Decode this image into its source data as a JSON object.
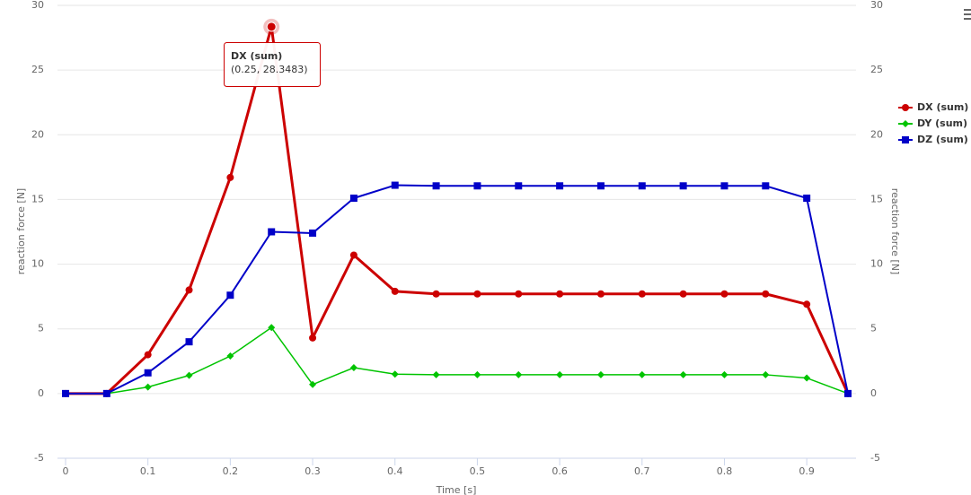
{
  "chart_data": {
    "type": "line",
    "x": [
      0,
      0.05,
      0.1,
      0.15,
      0.2,
      0.25,
      0.3,
      0.35,
      0.4,
      0.45,
      0.5,
      0.55,
      0.6,
      0.65,
      0.7,
      0.75,
      0.8,
      0.85,
      0.9,
      0.95
    ],
    "series": [
      {
        "name": "DX (sum)",
        "color": "#cc0000",
        "values": [
          0,
          0,
          3.0,
          8.0,
          16.7,
          28.3483,
          4.3,
          10.7,
          7.9,
          7.7,
          7.7,
          7.7,
          7.7,
          7.7,
          7.7,
          7.7,
          7.7,
          7.7,
          6.9,
          0
        ]
      },
      {
        "name": "DY (sum)",
        "color": "#00c400",
        "values": [
          0,
          0,
          0.5,
          1.4,
          2.9,
          5.1,
          0.7,
          2.0,
          1.5,
          1.45,
          1.45,
          1.45,
          1.45,
          1.45,
          1.45,
          1.45,
          1.45,
          1.45,
          1.2,
          0
        ]
      },
      {
        "name": "DZ (sum)",
        "color": "#0000c8",
        "values": [
          0,
          0,
          1.6,
          4.0,
          7.6,
          12.5,
          12.4,
          15.1,
          16.1,
          16.05,
          16.05,
          16.05,
          16.05,
          16.05,
          16.05,
          16.05,
          16.05,
          16.05,
          15.1,
          0
        ]
      }
    ],
    "xlim": [
      0,
      0.95
    ],
    "xticks": [
      0,
      0.1,
      0.2,
      0.3,
      0.4,
      0.5,
      0.6,
      0.7,
      0.8,
      0.9
    ],
    "ylim": [
      -5,
      30
    ],
    "yticks": [
      -5,
      0,
      5,
      10,
      15,
      20,
      25,
      30
    ],
    "y2lim": [
      -5,
      30
    ],
    "y2ticks": [
      -5,
      0,
      5,
      10,
      15,
      20,
      25,
      30
    ],
    "ylabel": "reaction force [N]",
    "y2label": "reaction force [N]",
    "xlabel": "Time [s]",
    "grid": true,
    "legend": "right",
    "tooltip": {
      "text": "(0.25, 28.3483)"
    }
  }
}
